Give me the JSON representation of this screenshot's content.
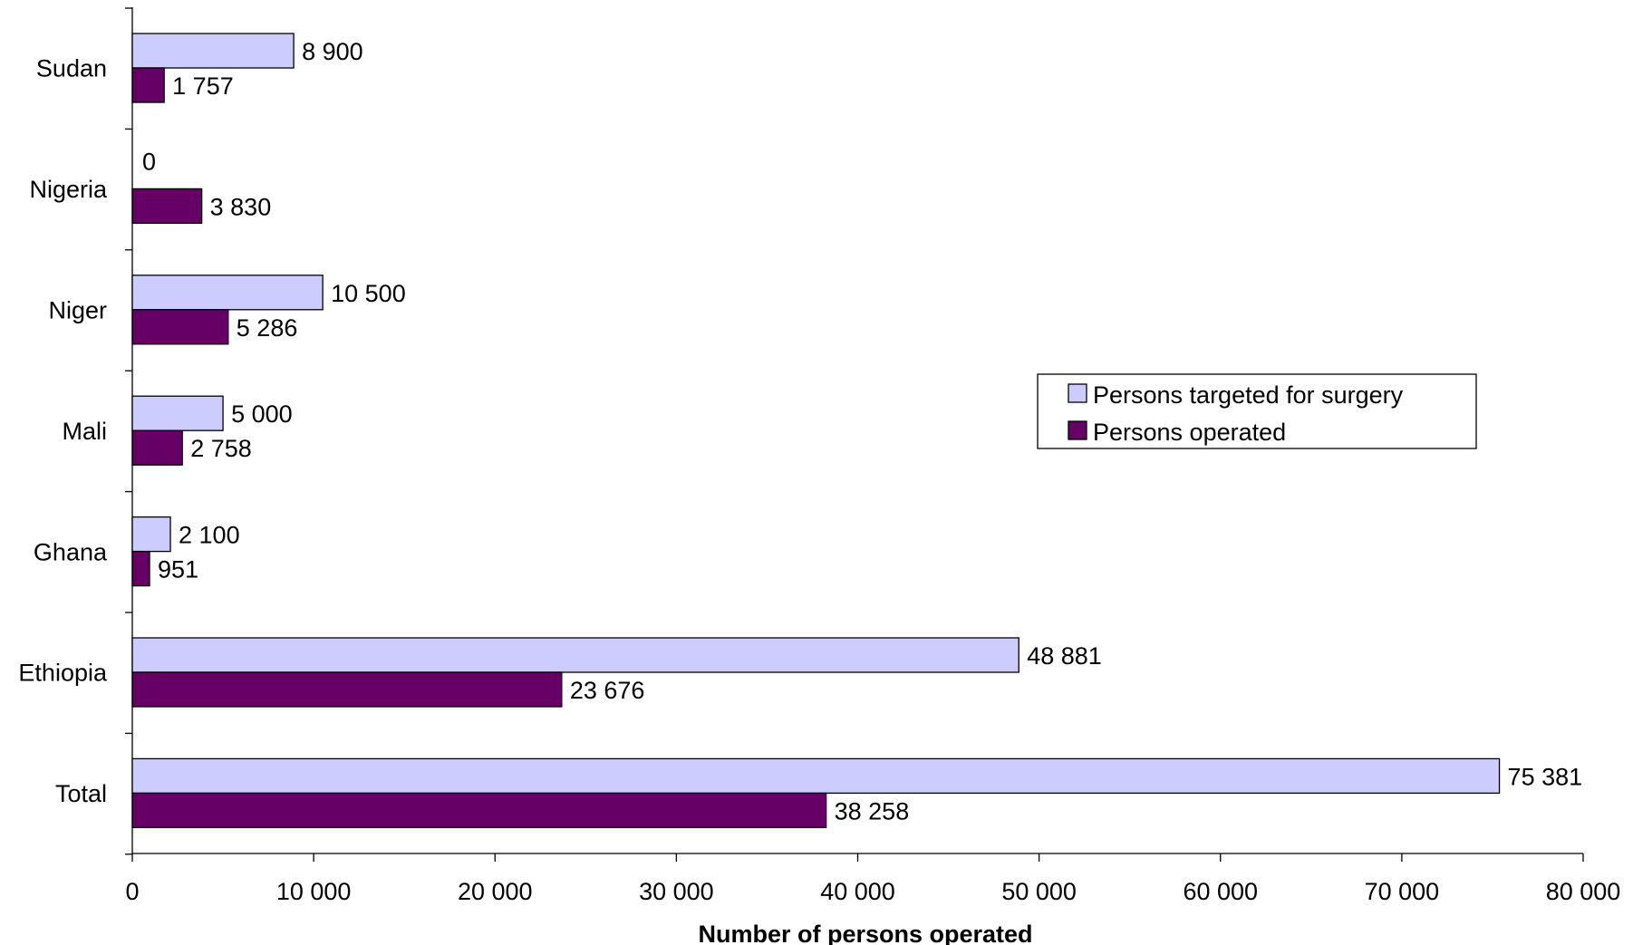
{
  "chart_data": {
    "type": "bar",
    "orientation": "horizontal",
    "title": "",
    "xlabel": "Number of persons operated",
    "ylabel": "",
    "xlim": [
      0,
      80000
    ],
    "x_ticks": [
      0,
      10000,
      20000,
      30000,
      40000,
      50000,
      60000,
      70000,
      80000
    ],
    "x_tick_labels": [
      "0",
      "10 000",
      "20 000",
      "30 000",
      "40 000",
      "50 000",
      "60 000",
      "70 000",
      "80 000"
    ],
    "categories": [
      "Sudan",
      "Nigeria",
      "Niger",
      "Mali",
      "Ghana",
      "Ethiopia",
      "Total"
    ],
    "series": [
      {
        "name": "Persons targeted for surgery",
        "color": "#ccccff",
        "values": [
          8900,
          0,
          10500,
          5000,
          2100,
          48881,
          75381
        ],
        "labels": [
          "8 900",
          "0",
          "10 500",
          "5 000",
          "2 100",
          "48 881",
          "75 381"
        ]
      },
      {
        "name": "Persons operated",
        "color": "#660066",
        "values": [
          1757,
          3830,
          5286,
          2758,
          951,
          23676,
          38258
        ],
        "labels": [
          "1 757",
          "3 830",
          "5 286",
          "2 758",
          "951",
          "23 676",
          "38 258"
        ]
      }
    ],
    "grid": false,
    "legend_position": "right"
  }
}
